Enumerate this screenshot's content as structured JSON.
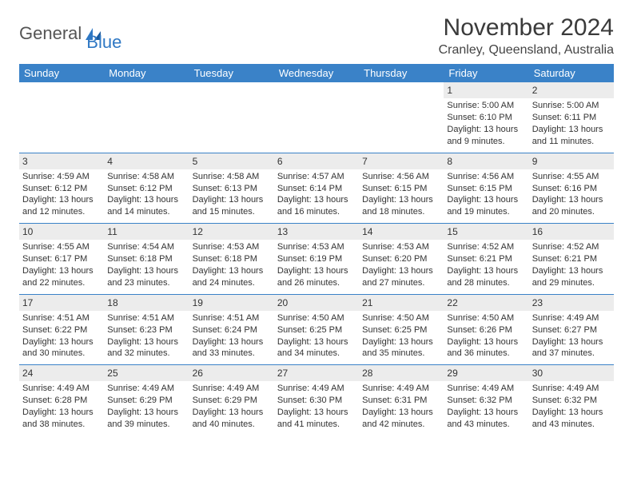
{
  "logo": {
    "text1": "General",
    "text2": "Blue"
  },
  "title": "November 2024",
  "location": "Cranley, Queensland, Australia",
  "colors": {
    "headerBg": "#3a82c8",
    "headerText": "#ffffff",
    "dayNumBg": "#ececec",
    "rowBorder": "#3a82c8",
    "bodyText": "#333333"
  },
  "dayHeaders": [
    "Sunday",
    "Monday",
    "Tuesday",
    "Wednesday",
    "Thursday",
    "Friday",
    "Saturday"
  ],
  "weeks": [
    [
      {
        "empty": true
      },
      {
        "empty": true
      },
      {
        "empty": true
      },
      {
        "empty": true
      },
      {
        "empty": true
      },
      {
        "n": "1",
        "sunrise": "5:00 AM",
        "sunset": "6:10 PM",
        "daylight": "13 hours and 9 minutes."
      },
      {
        "n": "2",
        "sunrise": "5:00 AM",
        "sunset": "6:11 PM",
        "daylight": "13 hours and 11 minutes."
      }
    ],
    [
      {
        "n": "3",
        "sunrise": "4:59 AM",
        "sunset": "6:12 PM",
        "daylight": "13 hours and 12 minutes."
      },
      {
        "n": "4",
        "sunrise": "4:58 AM",
        "sunset": "6:12 PM",
        "daylight": "13 hours and 14 minutes."
      },
      {
        "n": "5",
        "sunrise": "4:58 AM",
        "sunset": "6:13 PM",
        "daylight": "13 hours and 15 minutes."
      },
      {
        "n": "6",
        "sunrise": "4:57 AM",
        "sunset": "6:14 PM",
        "daylight": "13 hours and 16 minutes."
      },
      {
        "n": "7",
        "sunrise": "4:56 AM",
        "sunset": "6:15 PM",
        "daylight": "13 hours and 18 minutes."
      },
      {
        "n": "8",
        "sunrise": "4:56 AM",
        "sunset": "6:15 PM",
        "daylight": "13 hours and 19 minutes."
      },
      {
        "n": "9",
        "sunrise": "4:55 AM",
        "sunset": "6:16 PM",
        "daylight": "13 hours and 20 minutes."
      }
    ],
    [
      {
        "n": "10",
        "sunrise": "4:55 AM",
        "sunset": "6:17 PM",
        "daylight": "13 hours and 22 minutes."
      },
      {
        "n": "11",
        "sunrise": "4:54 AM",
        "sunset": "6:18 PM",
        "daylight": "13 hours and 23 minutes."
      },
      {
        "n": "12",
        "sunrise": "4:53 AM",
        "sunset": "6:18 PM",
        "daylight": "13 hours and 24 minutes."
      },
      {
        "n": "13",
        "sunrise": "4:53 AM",
        "sunset": "6:19 PM",
        "daylight": "13 hours and 26 minutes."
      },
      {
        "n": "14",
        "sunrise": "4:53 AM",
        "sunset": "6:20 PM",
        "daylight": "13 hours and 27 minutes."
      },
      {
        "n": "15",
        "sunrise": "4:52 AM",
        "sunset": "6:21 PM",
        "daylight": "13 hours and 28 minutes."
      },
      {
        "n": "16",
        "sunrise": "4:52 AM",
        "sunset": "6:21 PM",
        "daylight": "13 hours and 29 minutes."
      }
    ],
    [
      {
        "n": "17",
        "sunrise": "4:51 AM",
        "sunset": "6:22 PM",
        "daylight": "13 hours and 30 minutes."
      },
      {
        "n": "18",
        "sunrise": "4:51 AM",
        "sunset": "6:23 PM",
        "daylight": "13 hours and 32 minutes."
      },
      {
        "n": "19",
        "sunrise": "4:51 AM",
        "sunset": "6:24 PM",
        "daylight": "13 hours and 33 minutes."
      },
      {
        "n": "20",
        "sunrise": "4:50 AM",
        "sunset": "6:25 PM",
        "daylight": "13 hours and 34 minutes."
      },
      {
        "n": "21",
        "sunrise": "4:50 AM",
        "sunset": "6:25 PM",
        "daylight": "13 hours and 35 minutes."
      },
      {
        "n": "22",
        "sunrise": "4:50 AM",
        "sunset": "6:26 PM",
        "daylight": "13 hours and 36 minutes."
      },
      {
        "n": "23",
        "sunrise": "4:49 AM",
        "sunset": "6:27 PM",
        "daylight": "13 hours and 37 minutes."
      }
    ],
    [
      {
        "n": "24",
        "sunrise": "4:49 AM",
        "sunset": "6:28 PM",
        "daylight": "13 hours and 38 minutes."
      },
      {
        "n": "25",
        "sunrise": "4:49 AM",
        "sunset": "6:29 PM",
        "daylight": "13 hours and 39 minutes."
      },
      {
        "n": "26",
        "sunrise": "4:49 AM",
        "sunset": "6:29 PM",
        "daylight": "13 hours and 40 minutes."
      },
      {
        "n": "27",
        "sunrise": "4:49 AM",
        "sunset": "6:30 PM",
        "daylight": "13 hours and 41 minutes."
      },
      {
        "n": "28",
        "sunrise": "4:49 AM",
        "sunset": "6:31 PM",
        "daylight": "13 hours and 42 minutes."
      },
      {
        "n": "29",
        "sunrise": "4:49 AM",
        "sunset": "6:32 PM",
        "daylight": "13 hours and 43 minutes."
      },
      {
        "n": "30",
        "sunrise": "4:49 AM",
        "sunset": "6:32 PM",
        "daylight": "13 hours and 43 minutes."
      }
    ]
  ],
  "labels": {
    "sunrise": "Sunrise:",
    "sunset": "Sunset:",
    "daylight": "Daylight:"
  }
}
